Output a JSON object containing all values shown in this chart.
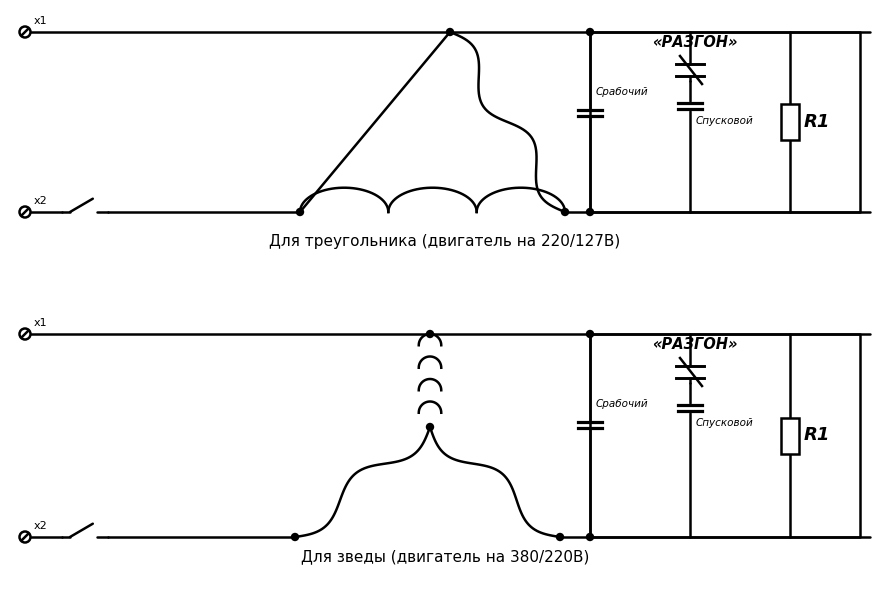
{
  "bg_color": "#ffffff",
  "line_color": "#000000",
  "line_width": 1.8,
  "title1": "Для треугольника (двигатель на 220/127В)",
  "title2": "Для зведы (двигатель на 380/220В)",
  "label_razgon": "«РАЗГОН»",
  "label_rabochiy": "Срабочий",
  "label_spuskovoy": "Спусковой",
  "label_R1": "R1",
  "label_x1": "x1",
  "label_x2": "x2"
}
